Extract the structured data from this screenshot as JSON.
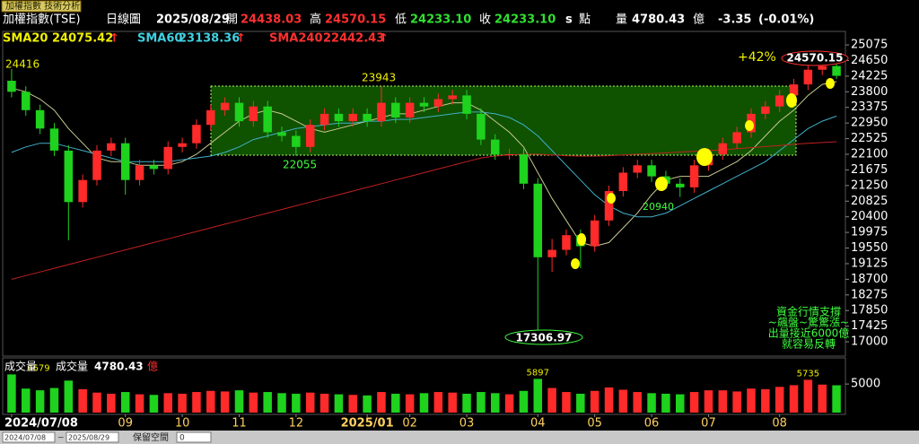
{
  "window_tab": "加權指數 技術分析",
  "quote": {
    "name": "加權指數(TSE)",
    "period": "日線圖",
    "date": "2025/08/29",
    "open_label": "開",
    "open": "24438.03",
    "high_label": "高",
    "high": "24570.15",
    "low_label": "低",
    "low": "24233.10",
    "close_label": "收",
    "close": "24233.10",
    "s": "s",
    "unit_label": "點",
    "volume_label": "量",
    "volume": "4780.43",
    "volume_unit": "億",
    "change": "-3.35",
    "change_pct": "(-0.01%)"
  },
  "chart_data": {
    "type": "candlestick",
    "categories": [
      "2024/07/08",
      null,
      null,
      null,
      null,
      null,
      null,
      null,
      "09",
      null,
      null,
      null,
      "10",
      null,
      null,
      null,
      "11",
      null,
      null,
      null,
      "12",
      null,
      null,
      null,
      null,
      "2025/01",
      null,
      null,
      "02",
      null,
      null,
      null,
      "03",
      null,
      null,
      null,
      null,
      "04",
      null,
      null,
      null,
      "05",
      null,
      null,
      null,
      "06",
      null,
      null,
      null,
      "07",
      null,
      null,
      null,
      null,
      "08",
      null,
      null,
      null,
      null
    ],
    "open": [
      24100,
      23800,
      23300,
      22800,
      22200,
      20800,
      21400,
      22200,
      22400,
      21400,
      21800,
      21700,
      22300,
      22400,
      22900,
      23300,
      23500,
      23000,
      23400,
      22700,
      22600,
      22300,
      22900,
      23200,
      23000,
      23200,
      23000,
      23500,
      23100,
      23500,
      23400,
      23600,
      23700,
      23200,
      22500,
      22100,
      22100,
      21300,
      19300,
      19500,
      19900,
      19600,
      20300,
      21100,
      21600,
      21800,
      21500,
      21300,
      21200,
      21800,
      22100,
      22400,
      22700,
      23200,
      23400,
      23700,
      24000,
      24400,
      24500
    ],
    "high": [
      24416,
      23950,
      23450,
      22950,
      22350,
      21550,
      22350,
      22550,
      22550,
      21950,
      21950,
      22450,
      22550,
      23050,
      23450,
      23650,
      23650,
      23550,
      23550,
      22850,
      22750,
      23050,
      23350,
      23350,
      23350,
      23350,
      23943,
      23650,
      23650,
      23650,
      23750,
      23850,
      23850,
      23350,
      22650,
      22250,
      22250,
      21450,
      19800,
      20050,
      20050,
      20450,
      21250,
      21750,
      21950,
      21950,
      21650,
      21450,
      21950,
      22250,
      22550,
      22850,
      23350,
      23550,
      23850,
      24150,
      24550,
      24560,
      24570.15
    ],
    "low": [
      23650,
      23150,
      22650,
      22050,
      19760,
      20650,
      21250,
      22050,
      21000,
      21250,
      21550,
      21550,
      22150,
      22250,
      22750,
      23150,
      22850,
      22850,
      22550,
      22450,
      22055,
      22150,
      22750,
      22850,
      22850,
      22850,
      22850,
      22950,
      22950,
      23250,
      23250,
      23450,
      23050,
      22350,
      21950,
      21950,
      21150,
      17306.97,
      18900,
      19350,
      19000,
      19450,
      20150,
      20950,
      21450,
      21350,
      21150,
      20940,
      21050,
      21650,
      21950,
      22250,
      22550,
      23050,
      23250,
      23550,
      23850,
      24250,
      24150
    ],
    "close": [
      23800,
      23300,
      22800,
      22200,
      20800,
      21400,
      22200,
      22400,
      21400,
      21800,
      21700,
      22300,
      22400,
      22900,
      23300,
      23500,
      23000,
      23400,
      22700,
      22600,
      22300,
      22900,
      23200,
      23000,
      23200,
      23000,
      23500,
      23100,
      23500,
      23400,
      23600,
      23700,
      23200,
      22500,
      22100,
      22100,
      21300,
      19300,
      19500,
      19900,
      19600,
      20300,
      21100,
      21600,
      21800,
      21500,
      21300,
      21200,
      21800,
      22100,
      22400,
      22700,
      23200,
      23400,
      23700,
      24000,
      24400,
      24500,
      24233.1
    ],
    "up_color": "#ff2a2a",
    "down_color": "#1ed21e",
    "series": [
      {
        "name": "SMA20",
        "color": "#f0f000",
        "line_color": "#c8c890",
        "latest": 24075.42,
        "values": [
          23900,
          23800,
          23600,
          23300,
          22800,
          22400,
          22000,
          21900,
          21900,
          21800,
          21800,
          21800,
          21900,
          22100,
          22400,
          22700,
          23000,
          23200,
          23300,
          23200,
          23000,
          22800,
          22700,
          22800,
          22900,
          23000,
          23100,
          23200,
          23200,
          23300,
          23400,
          23500,
          23500,
          23300,
          23000,
          22700,
          22300,
          21600,
          20900,
          20300,
          19700,
          19600,
          19700,
          20100,
          20500,
          21000,
          21400,
          21500,
          21500,
          21500,
          21700,
          21900,
          22200,
          22600,
          23000,
          23300,
          23700,
          24000,
          24075.42
        ]
      },
      {
        "name": "SMA60",
        "color": "#40d0e0",
        "line_color": "#40b0c8",
        "latest": 23138.36,
        "values": [
          22150,
          22300,
          22400,
          22400,
          22300,
          22200,
          22100,
          22000,
          21900,
          21900,
          21900,
          21900,
          21950,
          22000,
          22050,
          22150,
          22300,
          22500,
          22600,
          22700,
          22800,
          22850,
          22900,
          22950,
          22950,
          23000,
          23000,
          23050,
          23050,
          23100,
          23150,
          23200,
          23250,
          23250,
          23200,
          23100,
          22900,
          22600,
          22200,
          21800,
          21400,
          21000,
          20700,
          20500,
          20400,
          20400,
          20500,
          20700,
          20900,
          21100,
          21300,
          21500,
          21700,
          21900,
          22200,
          22500,
          22800,
          23000,
          23138.36
        ]
      },
      {
        "name": "SMA240",
        "color": "#ff3030",
        "line_color": "#c02020",
        "latest": 22442.43,
        "values": [
          18700,
          18800,
          18900,
          19000,
          19100,
          19200,
          19300,
          19400,
          19500,
          19600,
          19700,
          19800,
          19900,
          20000,
          20100,
          20200,
          20300,
          20400,
          20500,
          20600,
          20700,
          20800,
          20900,
          21000,
          21100,
          21200,
          21300,
          21400,
          21500,
          21600,
          21700,
          21800,
          21900,
          22000,
          22050,
          22080,
          22100,
          22100,
          22080,
          22060,
          22050,
          22050,
          22060,
          22080,
          22100,
          22120,
          22140,
          22160,
          22180,
          22200,
          22220,
          22250,
          22280,
          22310,
          22340,
          22370,
          22400,
          22420,
          22442.43
        ]
      }
    ],
    "trend_arrow": "↑",
    "ylim": [
      16660,
      25320
    ],
    "yticks": [
      25075,
      24650,
      24225,
      23800,
      23375,
      22950,
      22525,
      22100,
      21675,
      21250,
      20825,
      20400,
      19975,
      19550,
      19125,
      18700,
      18275,
      17850,
      17425,
      17000
    ],
    "grid": false,
    "annotations": [
      24416,
      23943,
      22055,
      20940,
      17306.97,
      24570.15
    ],
    "gain_note": "+42%",
    "note_lines": [
      "資金行情支撐",
      "~飆盤~驚驚漲~",
      "出量接近6000億",
      "就容易反轉"
    ],
    "volume": {
      "title": "成交量",
      "label": "成交量",
      "value": "4780.43",
      "unit": "億",
      "values": [
        6679,
        4200,
        3900,
        4300,
        5600,
        4100,
        3500,
        3300,
        3600,
        3200,
        3100,
        3400,
        3300,
        3600,
        3800,
        3700,
        3900,
        3500,
        3600,
        3400,
        3300,
        3500,
        3300,
        3200,
        3100,
        3000,
        3600,
        3300,
        3200,
        3400,
        3600,
        3500,
        3300,
        3600,
        3400,
        3200,
        3800,
        5897,
        4300,
        3600,
        3300,
        3800,
        4400,
        4000,
        3600,
        3400,
        3300,
        3200,
        3600,
        3900,
        3900,
        3700,
        4200,
        4100,
        4500,
        4800,
        5735,
        4900,
        4780.43
      ],
      "ylim": [
        0,
        8000
      ],
      "yticks": [
        5000
      ]
    }
  },
  "toolbar": {
    "from": "2024/07/08",
    "sep": "~",
    "to": "2025/08/29",
    "reserve_label": "保留空間",
    "reserve_value": "0"
  }
}
